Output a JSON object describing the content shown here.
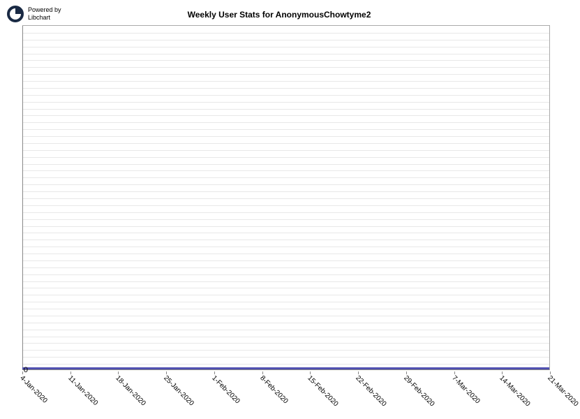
{
  "logo": {
    "line1": "Powered by",
    "line2": "Libchart"
  },
  "chart": {
    "type": "line",
    "title": "Weekly User Stats for AnonymousChowtyme2",
    "title_fontsize": 12,
    "title_fontweight": "bold",
    "background_color": "#ffffff",
    "plot_bg_color": "#ffffff",
    "grid_color": "#e8e8e8",
    "axis_color": "#888888",
    "border_color": "#aaaaaa",
    "line_color": "#5050b0",
    "line_width": 3,
    "grid_line_count": 50,
    "x_categories": [
      "4-Jan-2020",
      "11-Jan-2020",
      "18-Jan-2020",
      "25-Jan-2020",
      "1-Feb-2020",
      "8-Feb-2020",
      "15-Feb-2020",
      "22-Feb-2020",
      "29-Feb-2020",
      "7-Mar-2020",
      "14-Mar-2020",
      "21-Mar-2020"
    ],
    "y_values": [
      0,
      0,
      0,
      0,
      0,
      0,
      0,
      0,
      0,
      0,
      0,
      0
    ],
    "y_ticks": [
      0
    ],
    "ylim": [
      0,
      1
    ],
    "x_label_rotation": 45,
    "x_label_fontsize": 10,
    "y_label_fontsize": 11
  }
}
